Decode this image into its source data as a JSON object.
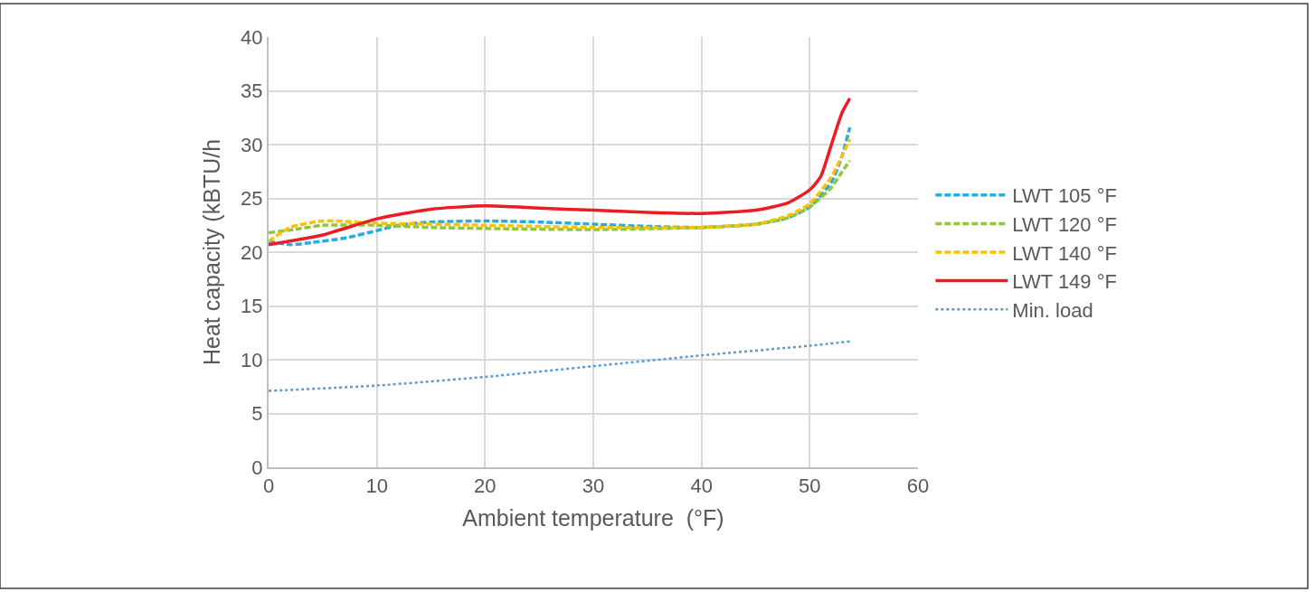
{
  "chart_data": {
    "type": "line",
    "xlabel": "Ambient temperature  (°F)",
    "ylabel": "Heat capacity (kBTU/h",
    "xlim": [
      0,
      60
    ],
    "xticks": [
      0,
      10,
      20,
      30,
      40,
      50,
      60
    ],
    "ylim": [
      0,
      40
    ],
    "yticks": [
      0,
      5,
      10,
      15,
      20,
      25,
      30,
      35,
      40
    ],
    "grid": true,
    "legend": "right",
    "marker": "none",
    "series": [
      {
        "name": "LWT 105 °F",
        "color": "#29abe2",
        "line_style": "dashed",
        "x": [
          0,
          2,
          4,
          7,
          10,
          12,
          15,
          20,
          25,
          30,
          35,
          40,
          45,
          48,
          50,
          52,
          53,
          53.7
        ],
        "values": [
          21.0,
          20.7,
          20.9,
          21.3,
          22.0,
          22.5,
          22.8,
          22.9,
          22.8,
          22.6,
          22.4,
          22.3,
          22.6,
          23.2,
          24.2,
          26.5,
          29,
          31.6
        ]
      },
      {
        "name": "LWT 120 °F",
        "color": "#8dc63f",
        "line_style": "dashed",
        "x": [
          0,
          3,
          5,
          10,
          15,
          20,
          30,
          40,
          45,
          48,
          50,
          52,
          53,
          53.7
        ],
        "values": [
          21.8,
          22.2,
          22.5,
          22.5,
          22.3,
          22.2,
          22.1,
          22.3,
          22.6,
          23.2,
          24.2,
          26,
          27.5,
          28.5
        ]
      },
      {
        "name": "LWT 140 °F",
        "color": "#ffc000",
        "line_style": "dashed",
        "x": [
          0,
          2,
          5,
          10,
          15,
          20,
          30,
          40,
          45,
          48,
          50,
          52,
          53,
          53.7
        ],
        "values": [
          21.0,
          22.3,
          22.9,
          22.7,
          22.6,
          22.5,
          22.3,
          22.3,
          22.6,
          23.4,
          24.5,
          27,
          29,
          30.5
        ]
      },
      {
        "name": "LWT 149 °F",
        "color": "#ed1c24",
        "line_style": "solid",
        "x": [
          0,
          5,
          10,
          15,
          20,
          25,
          30,
          35,
          40,
          45,
          48,
          50,
          51,
          52,
          53,
          53.7
        ],
        "values": [
          20.7,
          21.6,
          23.1,
          24.0,
          24.3,
          24.1,
          23.9,
          23.7,
          23.6,
          23.9,
          24.6,
          25.8,
          27,
          30,
          33,
          34.3
        ]
      },
      {
        "name": "Min. load",
        "color": "#5b9bd5",
        "line_style": "dotted",
        "x": [
          0,
          10,
          20,
          30,
          40,
          50,
          53.7
        ],
        "values": [
          7.1,
          7.6,
          8.4,
          9.4,
          10.4,
          11.3,
          11.7
        ]
      }
    ]
  }
}
